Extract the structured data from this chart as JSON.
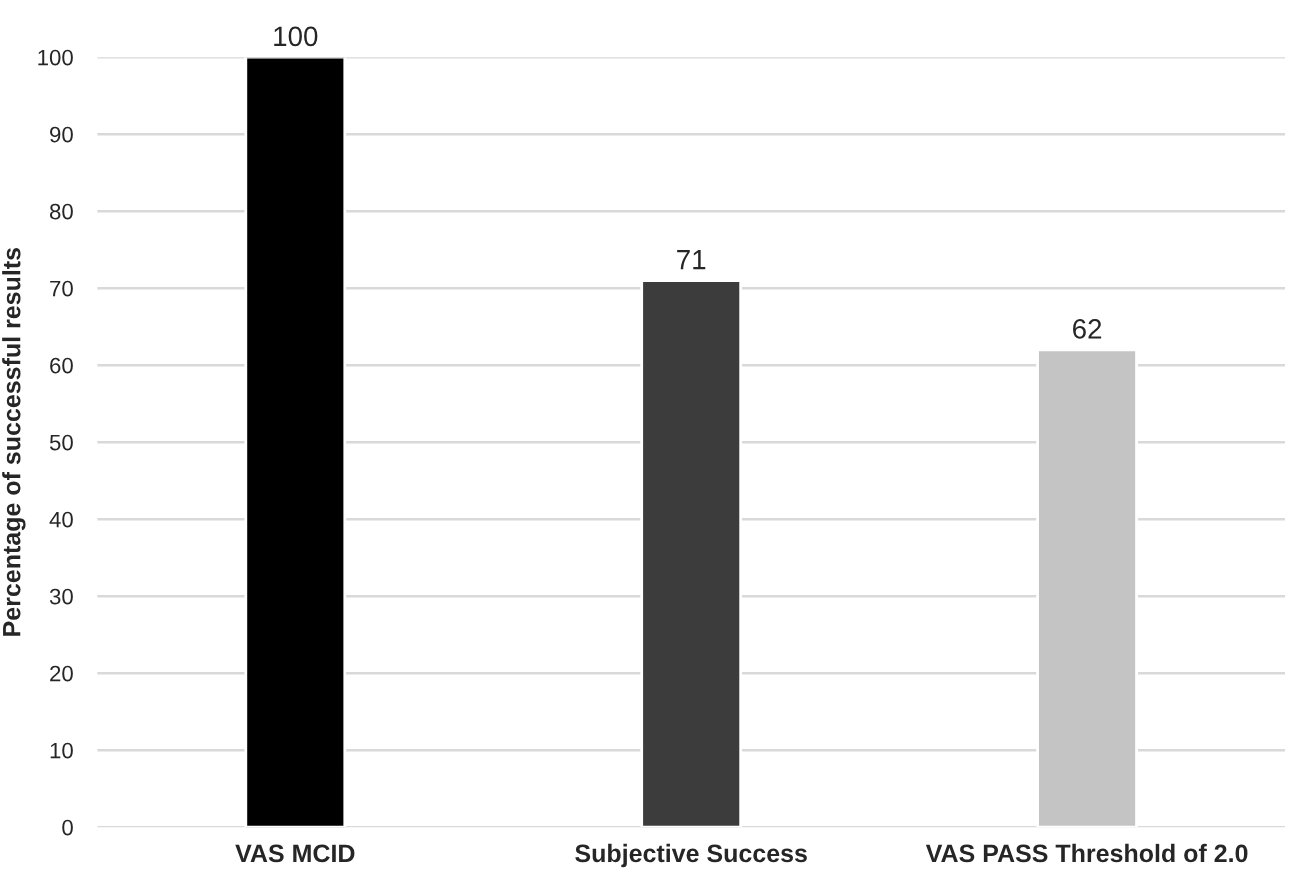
{
  "chart_data": {
    "type": "bar",
    "ylabel": "Percentage of successful results",
    "categories": [
      "VAS MCID",
      "Subjective Success",
      "VAS PASS Threshold of 2.0"
    ],
    "values": [
      100,
      71,
      62
    ],
    "colors": [
      "#000000",
      "#3c3c3c",
      "#c4c4c4"
    ],
    "ylim": [
      0,
      100
    ],
    "yticks": [
      0,
      10,
      20,
      30,
      40,
      50,
      60,
      70,
      80,
      90,
      100
    ],
    "grid": "y",
    "data_labels": true
  }
}
